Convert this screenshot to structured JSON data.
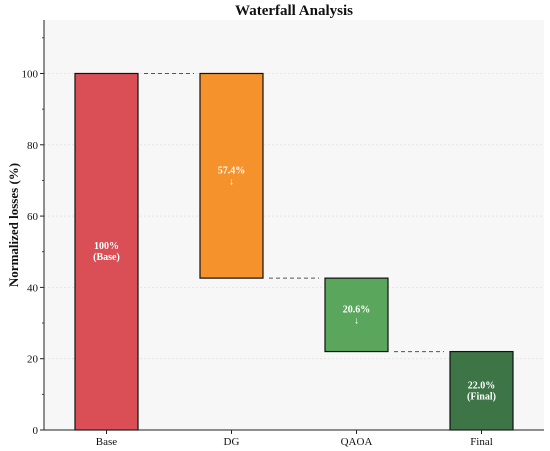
{
  "chart_data": {
    "type": "bar",
    "subtype": "waterfall",
    "title": "Waterfall Analysis",
    "xlabel": "",
    "ylabel": "Normalized losses (%)",
    "ylim": [
      0,
      115
    ],
    "yticks": [
      "0",
      "20",
      "40",
      "60",
      "80",
      "100"
    ],
    "grid": "horizontal-dotted",
    "categories": [
      "Base",
      "DG",
      "QAOA",
      "Final"
    ],
    "bars": [
      {
        "category": "Base",
        "bottom": 0,
        "top": 100,
        "color": "#d94f55",
        "label_lines": [
          "100%",
          "(Base)"
        ],
        "arrow": ""
      },
      {
        "category": "DG",
        "bottom": 42.6,
        "top": 100,
        "color": "#f5922b",
        "label_lines": [
          "57.4%"
        ],
        "arrow": "↓"
      },
      {
        "category": "QAOA",
        "bottom": 22.0,
        "top": 42.6,
        "color": "#5aa65d",
        "label_lines": [
          "20.6%"
        ],
        "arrow": "↓"
      },
      {
        "category": "Final",
        "bottom": 0,
        "top": 22.0,
        "color": "#3e7546",
        "label_lines": [
          "22.0%",
          "(Final)"
        ],
        "arrow": ""
      }
    ],
    "connectors": [
      {
        "from": 0,
        "to": 1,
        "level": 100
      },
      {
        "from": 1,
        "to": 2,
        "level": 42.6
      },
      {
        "from": 2,
        "to": 3,
        "level": 22.0
      }
    ]
  }
}
